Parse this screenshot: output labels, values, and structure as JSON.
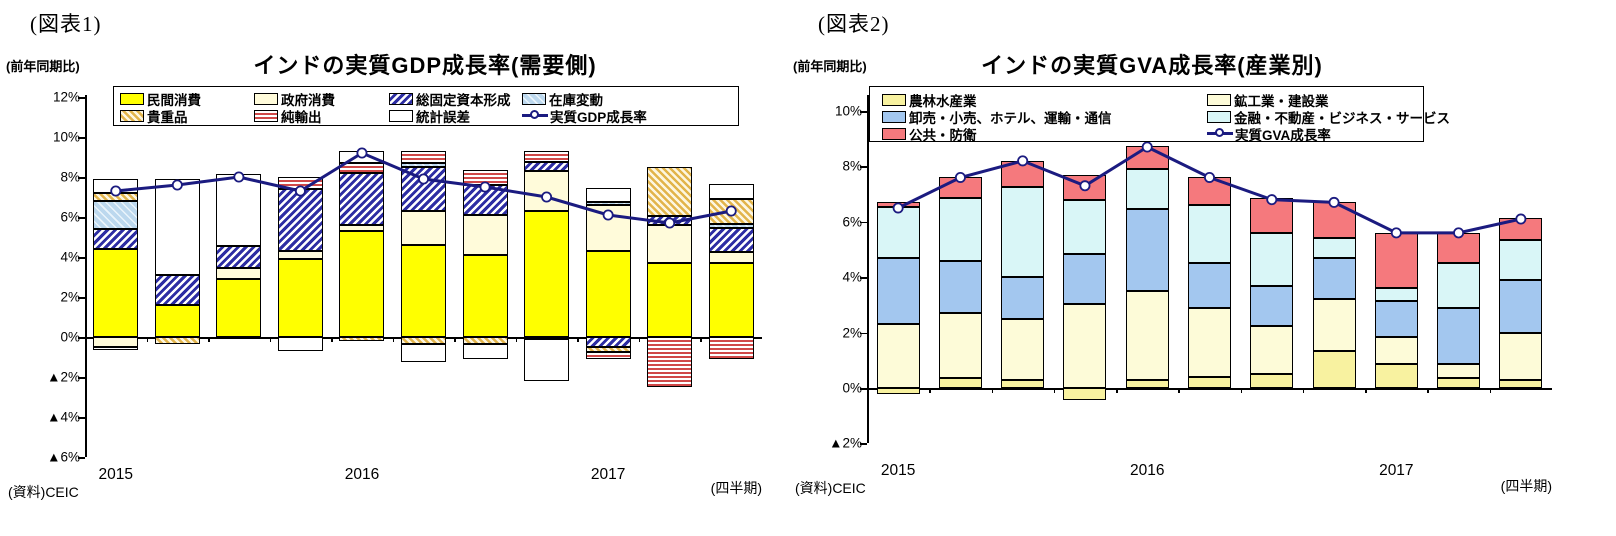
{
  "colors": {
    "line_navy": "#1b1b80",
    "bar_yellow": "#ffff00",
    "cream": "#fffbda",
    "hatch_navy": "#2d2da3",
    "inventory_blue": "#bcd8ee",
    "valuables_gold": "#e2b44a",
    "net_exports_red": "#d04848",
    "agriculture_yellow": "#f8f2a0",
    "mining_cream": "#fdfbd8",
    "trade_blue": "#a3c7ef",
    "finance_cyan": "#d9f6f7",
    "public_red": "#f5797d"
  },
  "figure1": {
    "fig_label": "(図表1)",
    "axis_note": "(前年同期比)",
    "title": "インドの実質GDP成長率(需要側)",
    "source": "(資料)CEIC",
    "unit_note": "(四半期)",
    "y_tick_labels": [
      "12%",
      "10%",
      "8%",
      "6%",
      "4%",
      "2%",
      "0%",
      "▲2%",
      "▲4%",
      "▲6%"
    ],
    "year_labels": [
      "2015",
      "2016",
      "2017"
    ],
    "legend": [
      {
        "key": "private-consumption",
        "label": "民間消費",
        "swatch": "fill"
      },
      {
        "key": "government-consumption",
        "label": "政府消費",
        "swatch": "fill"
      },
      {
        "key": "gross-fixed-capital-formation",
        "label": "総固定資本形成",
        "swatch": "fill"
      },
      {
        "key": "inventory-change",
        "label": "在庫変動",
        "swatch": "fill"
      },
      {
        "key": "valuables",
        "label": "貴重品",
        "swatch": "fill"
      },
      {
        "key": "net-exports",
        "label": "純輸出",
        "swatch": "fill"
      },
      {
        "key": "statistical-discrepancy",
        "label": "統計誤差",
        "swatch": "fill"
      },
      {
        "key": "real-gdp-growth",
        "label": "実質GDP成長率",
        "swatch": "line"
      }
    ]
  },
  "figure2": {
    "fig_label": "(図表2)",
    "axis_note": "(前年同期比)",
    "title": "インドの実質GVA成長率(産業別)",
    "source": "(資料)CEIC",
    "unit_note": "(四半期)",
    "y_tick_labels": [
      "10%",
      "8%",
      "6%",
      "4%",
      "2%",
      "0%",
      "▲2%"
    ],
    "year_labels": [
      "2015",
      "2016",
      "2017"
    ],
    "legend": [
      {
        "key": "agriculture-forestry-fishing",
        "label": "農林水産業",
        "swatch": "fill"
      },
      {
        "key": "mining-industry-construction",
        "label": "鉱工業・建設業",
        "swatch": "fill"
      },
      {
        "key": "trade-hotels-transport-communication",
        "label": "卸売・小売、ホテル、運輸・通信",
        "swatch": "fill"
      },
      {
        "key": "finance-realestate-business-services",
        "label": "金融・不動産・ビジネス・サービス",
        "swatch": "fill"
      },
      {
        "key": "public-administration-defence",
        "label": "公共・防衛",
        "swatch": "fill"
      },
      {
        "key": "real-gva-growth",
        "label": "実質GVA成長率",
        "swatch": "line"
      }
    ]
  },
  "chart_data": [
    {
      "type": "bar",
      "stacked": true,
      "title": "インドの実質GDP成長率(需要側)",
      "xlabel": "(四半期)",
      "ylabel": "(前年同期比)",
      "categories": [
        "2015Q1",
        "2015Q2",
        "2015Q3",
        "2015Q4",
        "2016Q1",
        "2016Q2",
        "2016Q3",
        "2016Q4",
        "2017Q1",
        "2017Q2",
        "2017Q3"
      ],
      "ylim": [
        -6,
        12
      ],
      "yticks": [
        12,
        10,
        8,
        6,
        4,
        2,
        0,
        -2,
        -4,
        -6
      ],
      "grid": false,
      "legend_position": "top",
      "series": [
        {
          "key": "private-consumption",
          "name": "民間消費",
          "values": [
            4.4,
            1.6,
            2.9,
            3.9,
            5.3,
            4.6,
            4.1,
            6.3,
            4.3,
            3.7,
            3.7
          ]
        },
        {
          "key": "government-consumption",
          "name": "政府消費",
          "values": [
            -0.5,
            0,
            0.55,
            0.4,
            0.3,
            1.7,
            2.0,
            2.0,
            2.3,
            1.9,
            0.55
          ]
        },
        {
          "key": "gross-fixed-capital-formation",
          "name": "総固定資本形成",
          "values": [
            1.0,
            1.5,
            1.1,
            3.1,
            2.6,
            2.2,
            1.5,
            0.45,
            -0.5,
            0.45,
            1.2
          ]
        },
        {
          "key": "inventory-change",
          "name": "在庫変動",
          "values": [
            1.4,
            0,
            0,
            0,
            0,
            0.2,
            0,
            0,
            0.15,
            0,
            0.2
          ]
        },
        {
          "key": "valuables",
          "name": "貴重品",
          "values": [
            0.4,
            -0.35,
            0,
            0,
            -0.2,
            -0.35,
            -0.35,
            -0.1,
            -0.25,
            2.45,
            1.25
          ]
        },
        {
          "key": "net-exports",
          "name": "純輸出",
          "values": [
            -0.15,
            0,
            -0.1,
            0.6,
            0.5,
            0.6,
            0.75,
            0.55,
            -0.35,
            -2.5,
            -1.1
          ]
        },
        {
          "key": "statistical-discrepancy",
          "name": "統計誤差",
          "values": [
            0.7,
            4.8,
            3.6,
            -0.7,
            0.6,
            -0.9,
            -0.75,
            -2.1,
            0.7,
            0,
            0.75
          ]
        }
      ],
      "line_series": {
        "key": "real-gdp-growth",
        "name": "実質GDP成長率",
        "values": [
          7.3,
          7.6,
          8.0,
          7.3,
          9.2,
          7.9,
          7.5,
          7.0,
          6.1,
          5.7,
          6.3
        ]
      }
    },
    {
      "type": "bar",
      "stacked": true,
      "title": "インドの実質GVA成長率(産業別)",
      "xlabel": "(四半期)",
      "ylabel": "(前年同期比)",
      "categories": [
        "2015Q1",
        "2015Q2",
        "2015Q3",
        "2015Q4",
        "2016Q1",
        "2016Q2",
        "2016Q3",
        "2016Q4",
        "2017Q1",
        "2017Q2",
        "2017Q3"
      ],
      "ylim": [
        -2,
        10
      ],
      "yticks": [
        10,
        8,
        6,
        4,
        2,
        0,
        -2
      ],
      "grid": false,
      "legend_position": "top",
      "series": [
        {
          "key": "agriculture-forestry-fishing",
          "name": "農林水産業",
          "values": [
            -0.2,
            0.35,
            0.3,
            -0.45,
            0.3,
            0.4,
            0.5,
            1.35,
            0.85,
            0.35,
            0.3
          ]
        },
        {
          "key": "mining-industry-construction",
          "name": "鉱工業・建設業",
          "values": [
            2.3,
            2.35,
            2.2,
            3.05,
            3.2,
            2.5,
            1.75,
            1.85,
            1.0,
            0.5,
            1.7
          ]
        },
        {
          "key": "trade-hotels-transport-communication",
          "name": "卸売・小売、ホテル、運輸・通信",
          "values": [
            2.4,
            1.9,
            1.5,
            1.8,
            2.95,
            1.6,
            1.45,
            1.5,
            1.3,
            2.05,
            1.9
          ]
        },
        {
          "key": "finance-realestate-business-services",
          "name": "金融・不動産・ビジネス・サービス",
          "values": [
            1.85,
            2.25,
            3.25,
            1.95,
            1.45,
            2.1,
            1.9,
            0.7,
            0.45,
            1.6,
            1.45
          ]
        },
        {
          "key": "public-administration-defence",
          "name": "公共・防衛",
          "values": [
            0.15,
            0.75,
            0.95,
            0.9,
            0.85,
            1.0,
            1.25,
            1.3,
            2.0,
            1.1,
            0.8
          ]
        }
      ],
      "line_series": {
        "key": "real-gva-growth",
        "name": "実質GVA成長率",
        "values": [
          6.5,
          7.6,
          8.2,
          7.3,
          8.7,
          7.6,
          6.8,
          6.7,
          5.6,
          5.6,
          6.1
        ]
      }
    }
  ]
}
